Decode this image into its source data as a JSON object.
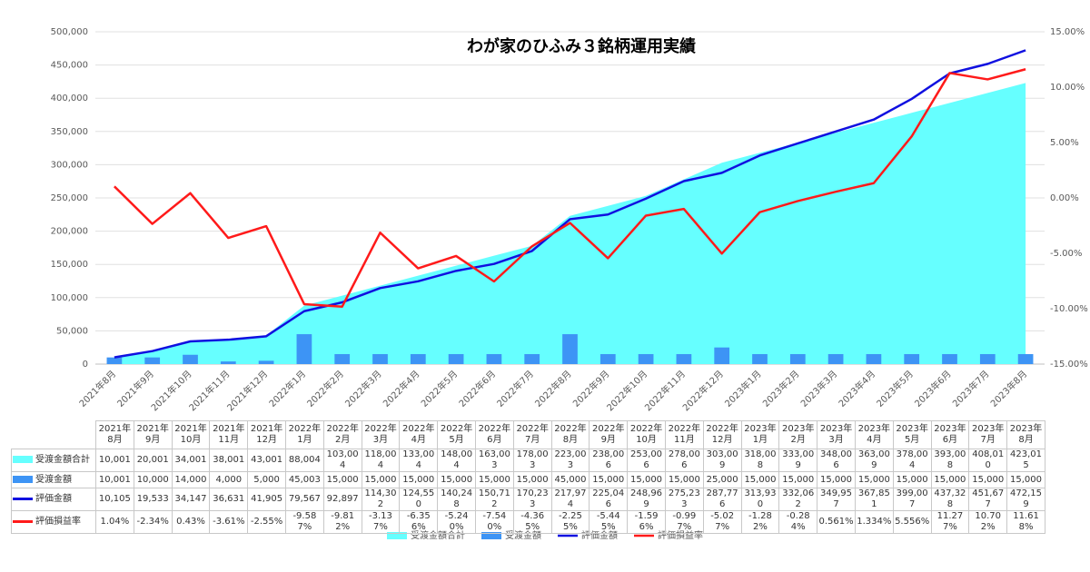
{
  "chart_data": {
    "type": "combo",
    "title": "わが家のひふみ３銘柄運用実績",
    "categories": [
      "2021年8月",
      "2021年9月",
      "2021年10月",
      "2021年11月",
      "2021年12月",
      "2022年1月",
      "2022年2月",
      "2022年3月",
      "2022年4月",
      "2022年5月",
      "2022年6月",
      "2022年7月",
      "2022年8月",
      "2022年9月",
      "2022年10月",
      "2022年11月",
      "2022年12月",
      "2023年1月",
      "2023年2月",
      "2023年3月",
      "2023年4月",
      "2023年5月",
      "2023年6月",
      "2023年7月",
      "2023年8月"
    ],
    "series": [
      {
        "name": "受渡金額合計",
        "type": "area",
        "color": "#66ffff",
        "values": [
          10001,
          20001,
          34001,
          38001,
          43001,
          88004,
          103004,
          118004,
          133004,
          148004,
          163003,
          178003,
          223003,
          238006,
          253006,
          278006,
          303009,
          318008,
          333009,
          348006,
          363009,
          378004,
          393008,
          408010,
          423015
        ],
        "value_labels": [
          "10,001",
          "20,001",
          "34,001",
          "38,001",
          "43,001",
          "88,004",
          "103,004",
          "118,004",
          "133,004",
          "148,004",
          "163,003",
          "178,003",
          "223,003",
          "238,006",
          "253,006",
          "278,006",
          "303,009",
          "318,008",
          "333,009",
          "348,006",
          "363,009",
          "378,004",
          "393,008",
          "408,010",
          "423,015"
        ]
      },
      {
        "name": "受渡金額",
        "type": "bar",
        "color": "#3d94f5",
        "values": [
          10001,
          10000,
          14000,
          4000,
          5000,
          45003,
          15000,
          15000,
          15000,
          15000,
          15000,
          15000,
          45000,
          15000,
          15000,
          15000,
          25000,
          15000,
          15000,
          15000,
          15000,
          15000,
          15000,
          15000,
          15000
        ],
        "value_labels": [
          "10,001",
          "10,000",
          "14,000",
          "4,000",
          "5,000",
          "45,003",
          "15,000",
          "15,000",
          "15,000",
          "15,000",
          "15,000",
          "15,000",
          "45,000",
          "15,000",
          "15,000",
          "15,000",
          "25,000",
          "15,000",
          "15,000",
          "15,000",
          "15,000",
          "15,000",
          "15,000",
          "15,000",
          "15,000"
        ]
      },
      {
        "name": "評価金額",
        "type": "line",
        "color": "#1010e0",
        "values": [
          10105,
          19533,
          34147,
          36631,
          41905,
          79567,
          92897,
          114302,
          124550,
          140248,
          150712,
          170233,
          217974,
          225046,
          248969,
          275233,
          287776,
          313930,
          332062,
          349957,
          367851,
          399007,
          437328,
          451677,
          472159
        ],
        "value_labels": [
          "10,105",
          "19,533",
          "34,147",
          "36,631",
          "41,905",
          "79,567",
          "92,897",
          "114,302",
          "124,550",
          "140,248",
          "150,712",
          "170,233",
          "217,974",
          "225,046",
          "248,969",
          "275,233",
          "287,776",
          "313,930",
          "332,062",
          "349,957",
          "367,851",
          "399,007",
          "437,328",
          "451,677",
          "472,159"
        ]
      },
      {
        "name": "評価損益率",
        "type": "line",
        "axis": "y2",
        "color": "#ff1a1a",
        "values": [
          1.04,
          -2.34,
          0.43,
          -3.61,
          -2.55,
          -9.587,
          -9.812,
          -3.137,
          -6.356,
          -5.24,
          -7.54,
          -4.365,
          -2.255,
          -5.445,
          -1.596,
          -0.997,
          -5.027,
          -1.282,
          -0.284,
          0.561,
          1.334,
          5.556,
          11.277,
          10.702,
          11.618
        ],
        "value_labels": [
          "1.04%",
          "-2.34%",
          "0.43%",
          "-3.61%",
          "-2.55%",
          "-9.587%",
          "-9.812%",
          "-3.137%",
          "-6.356%",
          "-5.240%",
          "-7.540%",
          "-4.365%",
          "-2.255%",
          "-5.445%",
          "-1.596%",
          "-0.997%",
          "-5.027%",
          "-1.282%",
          "-0.284%",
          "0.561%",
          "1.334%",
          "5.556%",
          "11.277%",
          "10.702%",
          "11.618%"
        ]
      }
    ],
    "ylim": [
      0,
      500000
    ],
    "yticks": [
      0,
      {
        "value": 50000,
        "label": "50,000"
      },
      {
        "value": 100000,
        "label": "100,000"
      },
      {
        "value": 150000,
        "label": "150,000"
      },
      {
        "value": 200000,
        "label": "200,000"
      },
      {
        "value": 250000,
        "label": "250,000"
      },
      {
        "value": 300000,
        "label": "300,000"
      },
      {
        "value": 350000,
        "label": "350,000"
      },
      {
        "value": 400000,
        "label": "400,000"
      },
      {
        "value": 450000,
        "label": "450,000"
      },
      {
        "value": 500000,
        "label": "500,000"
      }
    ],
    "y2lim": [
      -15,
      15
    ],
    "y2ticks": [
      {
        "value": -15,
        "label": "-15.00%"
      },
      {
        "value": -10,
        "label": "-10.00%"
      },
      {
        "value": -5,
        "label": "-5.00%"
      },
      {
        "value": 0,
        "label": "0.00%"
      },
      {
        "value": 5,
        "label": "5.00%"
      },
      {
        "value": 10,
        "label": "10.00%"
      },
      {
        "value": 15,
        "label": "15.00%"
      }
    ],
    "grid": true,
    "legend": "bottom",
    "data_table": true
  }
}
